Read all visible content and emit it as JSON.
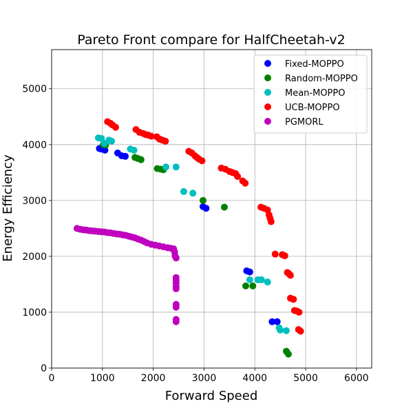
{
  "chart_data": {
    "type": "scatter",
    "title": "Pareto Front compare for HalfCheetah-v2",
    "xlabel": "Forward Speed",
    "ylabel": "Energy Efficiency",
    "xlim": [
      0,
      6300
    ],
    "ylim": [
      0,
      5700
    ],
    "xticks": [
      0,
      1000,
      2000,
      3000,
      4000,
      5000,
      6000
    ],
    "yticks": [
      0,
      1000,
      2000,
      3000,
      4000,
      5000
    ],
    "grid": true,
    "legend_position": "top-right",
    "series": [
      {
        "name": "Fixed-MOPPO",
        "color": "#0000ff",
        "points": [
          [
            940,
            3930
          ],
          [
            980,
            3920
          ],
          [
            1000,
            3930
          ],
          [
            1050,
            3900
          ],
          [
            1300,
            3850
          ],
          [
            1380,
            3800
          ],
          [
            1450,
            3790
          ],
          [
            2980,
            2890
          ],
          [
            3040,
            2860
          ],
          [
            3840,
            1740
          ],
          [
            3900,
            1720
          ],
          [
            4340,
            830
          ],
          [
            4440,
            830
          ]
        ]
      },
      {
        "name": "Random-MOPPO",
        "color": "#008000",
        "points": [
          [
            1020,
            4000
          ],
          [
            1060,
            3990
          ],
          [
            1640,
            3770
          ],
          [
            1700,
            3750
          ],
          [
            1760,
            3730
          ],
          [
            2080,
            3570
          ],
          [
            2150,
            3560
          ],
          [
            2200,
            3550
          ],
          [
            2980,
            3000
          ],
          [
            3400,
            2880
          ],
          [
            3820,
            1470
          ],
          [
            3960,
            1470
          ],
          [
            4620,
            300
          ],
          [
            4660,
            250
          ]
        ]
      },
      {
        "name": "Mean-MOPPO",
        "color": "#00bfbf",
        "points": [
          [
            920,
            4120
          ],
          [
            980,
            4110
          ],
          [
            1040,
            4020
          ],
          [
            1130,
            4080
          ],
          [
            1180,
            4060
          ],
          [
            1550,
            3920
          ],
          [
            1620,
            3900
          ],
          [
            2250,
            3600
          ],
          [
            2450,
            3600
          ],
          [
            2600,
            3160
          ],
          [
            2780,
            3130
          ],
          [
            3900,
            1580
          ],
          [
            4060,
            1580
          ],
          [
            4130,
            1580
          ],
          [
            4250,
            1540
          ],
          [
            4480,
            720
          ],
          [
            4500,
            680
          ],
          [
            4620,
            670
          ]
        ]
      },
      {
        "name": "UCB-MOPPO",
        "color": "#ff0000",
        "points": [
          [
            1100,
            4410
          ],
          [
            1160,
            4380
          ],
          [
            1200,
            4350
          ],
          [
            1260,
            4310
          ],
          [
            1660,
            4270
          ],
          [
            1730,
            4220
          ],
          [
            1800,
            4200
          ],
          [
            1850,
            4180
          ],
          [
            1900,
            4170
          ],
          [
            1960,
            4150
          ],
          [
            2070,
            4140
          ],
          [
            2120,
            4100
          ],
          [
            2180,
            4080
          ],
          [
            2240,
            4060
          ],
          [
            2700,
            3880
          ],
          [
            2760,
            3850
          ],
          [
            2820,
            3800
          ],
          [
            2860,
            3770
          ],
          [
            2900,
            3740
          ],
          [
            2960,
            3710
          ],
          [
            3340,
            3580
          ],
          [
            3420,
            3560
          ],
          [
            3500,
            3520
          ],
          [
            3560,
            3500
          ],
          [
            3620,
            3480
          ],
          [
            3660,
            3430
          ],
          [
            3760,
            3350
          ],
          [
            3810,
            3310
          ],
          [
            4120,
            2880
          ],
          [
            4180,
            2860
          ],
          [
            4250,
            2830
          ],
          [
            4280,
            2740
          ],
          [
            4300,
            2680
          ],
          [
            4320,
            2620
          ],
          [
            4400,
            2040
          ],
          [
            4540,
            2030
          ],
          [
            4590,
            2010
          ],
          [
            4640,
            1710
          ],
          [
            4670,
            1690
          ],
          [
            4700,
            1660
          ],
          [
            4700,
            1250
          ],
          [
            4760,
            1230
          ],
          [
            4780,
            1030
          ],
          [
            4830,
            1020
          ],
          [
            4870,
            1000
          ],
          [
            4860,
            690
          ],
          [
            4900,
            660
          ]
        ]
      },
      {
        "name": "PGMORL",
        "color": "#bf00bf",
        "points": [
          [
            500,
            2500
          ],
          [
            560,
            2485
          ],
          [
            620,
            2475
          ],
          [
            680,
            2470
          ],
          [
            740,
            2460
          ],
          [
            800,
            2455
          ],
          [
            860,
            2450
          ],
          [
            920,
            2445
          ],
          [
            980,
            2440
          ],
          [
            1040,
            2435
          ],
          [
            1100,
            2425
          ],
          [
            1160,
            2420
          ],
          [
            1220,
            2410
          ],
          [
            1280,
            2400
          ],
          [
            1340,
            2395
          ],
          [
            1400,
            2385
          ],
          [
            1460,
            2375
          ],
          [
            1520,
            2360
          ],
          [
            1580,
            2345
          ],
          [
            1640,
            2330
          ],
          [
            1700,
            2310
          ],
          [
            1760,
            2290
          ],
          [
            1820,
            2265
          ],
          [
            1880,
            2240
          ],
          [
            1960,
            2215
          ],
          [
            2040,
            2200
          ],
          [
            2120,
            2185
          ],
          [
            2200,
            2170
          ],
          [
            2280,
            2155
          ],
          [
            2340,
            2145
          ],
          [
            2400,
            2135
          ],
          [
            2420,
            2080
          ],
          [
            2430,
            2010
          ],
          [
            2450,
            1970
          ],
          [
            2450,
            1620
          ],
          [
            2450,
            1570
          ],
          [
            2450,
            1520
          ],
          [
            2450,
            1460
          ],
          [
            2450,
            1420
          ],
          [
            2450,
            1140
          ],
          [
            2450,
            1090
          ],
          [
            2450,
            870
          ],
          [
            2450,
            830
          ]
        ]
      }
    ]
  }
}
